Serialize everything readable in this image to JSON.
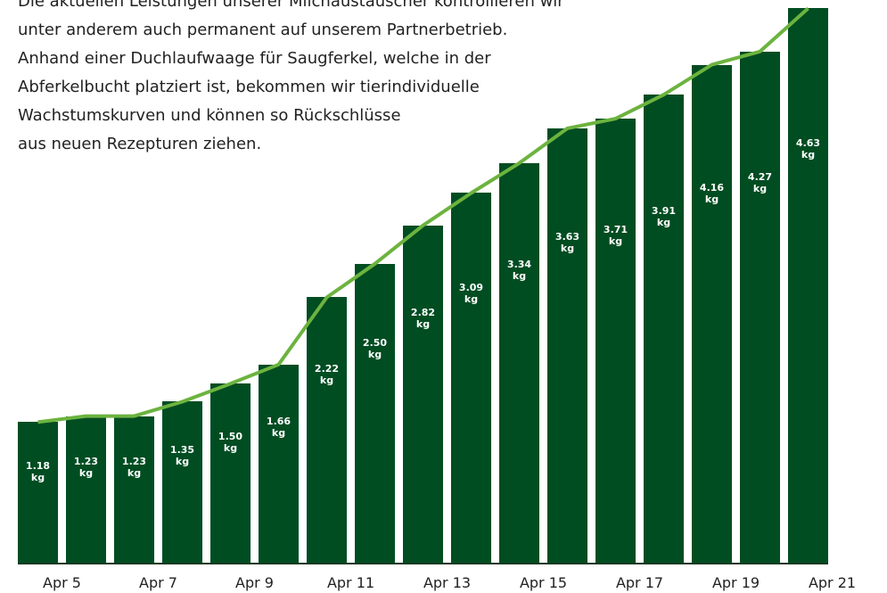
{
  "intro": [
    "Die aktuellen Leistungen unserer Milchaustauscher kontrollieren wir",
    "unter anderem auch permanent auf unserem Partnerbetrieb.",
    "Anhand einer Duchlaufwaage für Saugferkel, welche in der",
    "Abferkelbucht platziert ist, bekommen wir tierindividuelle",
    "Wachstumskurven und können so Rückschlüsse",
    "aus neuen Rezepturen ziehen."
  ],
  "chart_data": {
    "type": "bar",
    "categories": [
      "Apr 5",
      null,
      "Apr 7",
      null,
      "Apr 9",
      null,
      "Apr 11",
      null,
      "Apr 13",
      null,
      "Apr 15",
      null,
      "Apr 17",
      null,
      "Apr 19",
      null,
      "Apr 21"
    ],
    "values": [
      1.18,
      1.23,
      1.23,
      1.35,
      1.5,
      1.66,
      2.22,
      2.5,
      2.82,
      3.09,
      3.34,
      3.63,
      3.71,
      3.91,
      4.16,
      4.27,
      4.63
    ],
    "value_labels": [
      "1.18 kg",
      "1.23 kg",
      "1.23 kg",
      "1.35 kg",
      "1.50 kg",
      "1.66 kg",
      "2.22 kg",
      "2.50 kg",
      "2.82 kg",
      "3.09 kg",
      "3.34 kg",
      "3.63 kg",
      "3.71 kg",
      "3.91 kg",
      "4.16 kg",
      "4.27 kg",
      "4.63 kg"
    ],
    "color": "#004d22",
    "line_color": "#6cb33f",
    "ylim": [
      0,
      4.7
    ]
  }
}
